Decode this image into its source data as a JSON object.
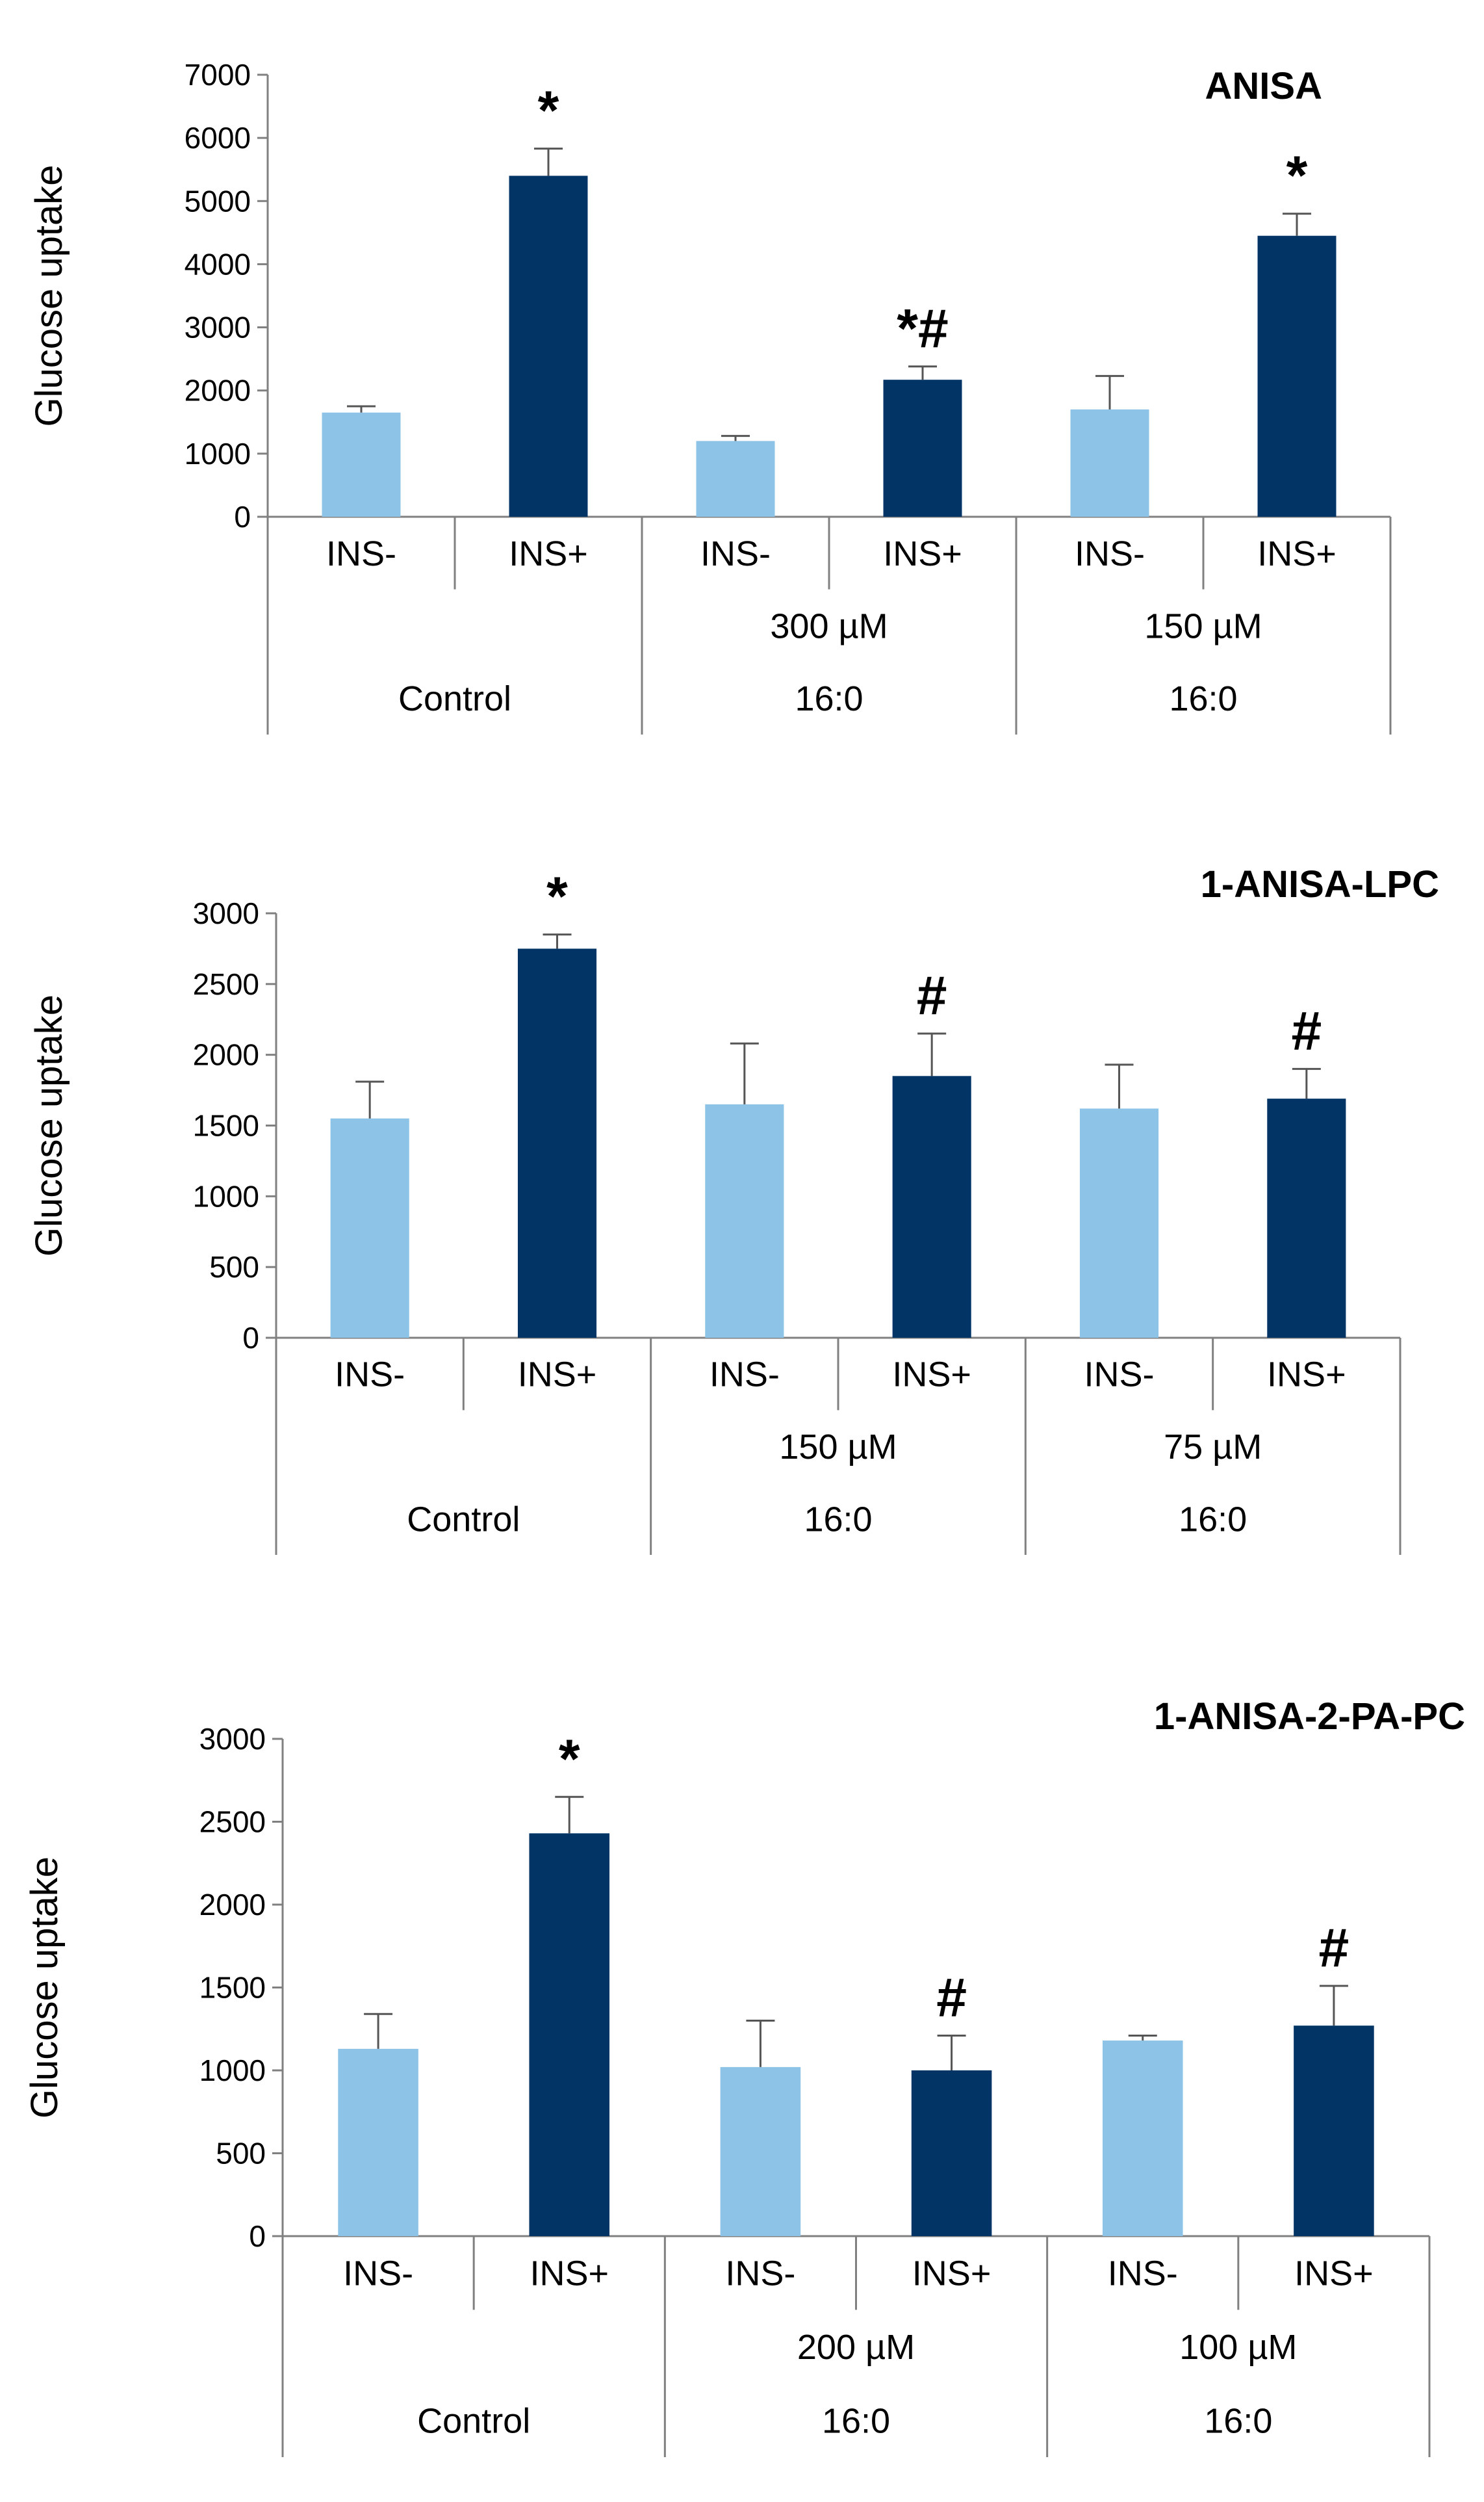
{
  "colors": {
    "ins_minus": "#8dc3e6",
    "ins_plus": "#023466",
    "axis": "#808080",
    "error_bar": "#555555"
  },
  "chart_data": [
    {
      "type": "bar",
      "title": "ANISA",
      "ylabel": "Glucose uptake",
      "ylim": [
        0,
        7000
      ],
      "yticks": [
        0,
        1000,
        2000,
        3000,
        4000,
        5000,
        6000,
        7000
      ],
      "categories": [
        "INS-",
        "INS+",
        "INS-",
        "INS+",
        "INS-",
        "INS+"
      ],
      "groups": [
        {
          "line1": "",
          "line2": "Control"
        },
        {
          "line1": "300 µM",
          "line2": "16:0"
        },
        {
          "line1": "150 µM",
          "line2": "16:0"
        }
      ],
      "values": [
        1650,
        5400,
        1200,
        2170,
        1700,
        4450
      ],
      "errors": [
        100,
        430,
        80,
        210,
        530,
        350
      ],
      "annotations": [
        "",
        "*",
        "",
        "*#",
        "",
        "*"
      ],
      "grid": false
    },
    {
      "type": "bar",
      "title": "1-ANISA-LPC",
      "ylabel": "Glucose uptake",
      "ylim": [
        0,
        3000
      ],
      "yticks": [
        0,
        500,
        1000,
        1500,
        2000,
        2500,
        3000
      ],
      "categories": [
        "INS-",
        "INS+",
        "INS-",
        "INS+",
        "INS-",
        "INS+"
      ],
      "groups": [
        {
          "line1": "",
          "line2": "Control"
        },
        {
          "line1": "150 µM",
          "line2": "16:0"
        },
        {
          "line1": "75 µM",
          "line2": "16:0"
        }
      ],
      "values": [
        1550,
        2750,
        1650,
        1850,
        1620,
        1690
      ],
      "errors": [
        260,
        100,
        430,
        300,
        310,
        210
      ],
      "annotations": [
        "",
        "*",
        "",
        "#",
        "",
        "#"
      ],
      "grid": false
    },
    {
      "type": "bar",
      "title": "1-ANISA-2-PA-PC",
      "ylabel": "Glucose uptake",
      "ylim": [
        0,
        3000
      ],
      "yticks": [
        0,
        500,
        1000,
        1500,
        2000,
        2500,
        3000
      ],
      "categories": [
        "INS-",
        "INS+",
        "INS-",
        "INS+",
        "INS-",
        "INS+"
      ],
      "groups": [
        {
          "line1": "",
          "line2": "Control"
        },
        {
          "line1": "200 µM",
          "line2": "16:0"
        },
        {
          "line1": "100 µM",
          "line2": "16:0"
        }
      ],
      "values": [
        1130,
        2430,
        1020,
        1000,
        1180,
        1270
      ],
      "errors": [
        210,
        220,
        280,
        210,
        30,
        240
      ],
      "annotations": [
        "",
        "*",
        "",
        "#",
        "",
        "#"
      ],
      "grid": false
    }
  ]
}
